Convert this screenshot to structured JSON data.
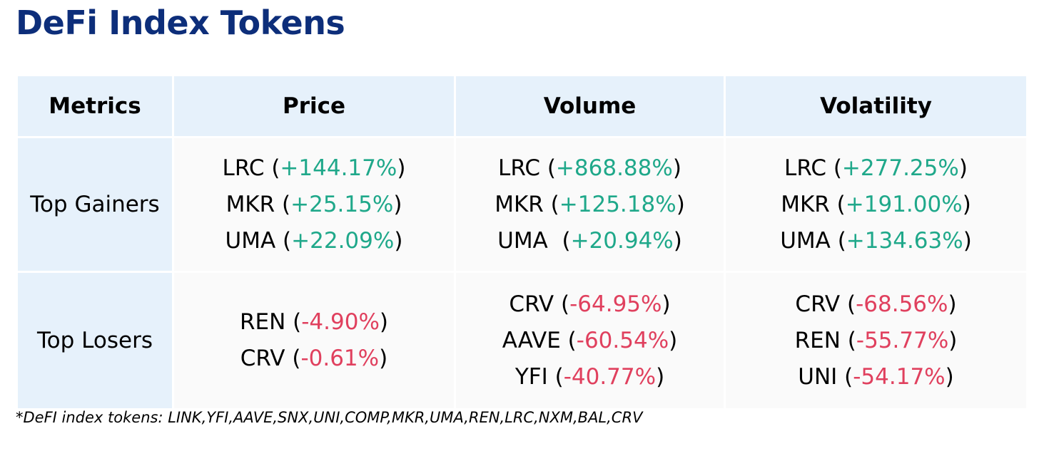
{
  "title": "DeFi Index Tokens",
  "colors": {
    "title": "#0d2e7a",
    "header_bg": "#e6f1fb",
    "cell_bg": "#fafafa",
    "positive": "#1fa88a",
    "negative": "#e0405e"
  },
  "table": {
    "headers": [
      "Metrics",
      "Price",
      "Volume",
      "Volatility"
    ],
    "rows": [
      {
        "label": "Top Gainers",
        "cells": [
          [
            {
              "symbol": "LRC",
              "change": "+144.17%"
            },
            {
              "symbol": "MKR",
              "change": "+25.15%"
            },
            {
              "symbol": "UMA",
              "change": "+22.09%"
            }
          ],
          [
            {
              "symbol": "LRC",
              "change": "+868.88%"
            },
            {
              "symbol": "MKR",
              "change": "+125.18%"
            },
            {
              "symbol": "UMA ",
              "change": "+20.94%"
            }
          ],
          [
            {
              "symbol": "LRC",
              "change": "+277.25%"
            },
            {
              "symbol": "MKR",
              "change": "+191.00%"
            },
            {
              "symbol": "UMA",
              "change": "+134.63%"
            }
          ]
        ]
      },
      {
        "label": "Top Losers",
        "cells": [
          [
            {
              "symbol": "REN",
              "change": "-4.90%"
            },
            {
              "symbol": "CRV",
              "change": "-0.61%"
            }
          ],
          [
            {
              "symbol": "CRV",
              "change": "-64.95%"
            },
            {
              "symbol": "AAVE",
              "change": "-60.54%"
            },
            {
              "symbol": "YFI",
              "change": "-40.77%"
            }
          ],
          [
            {
              "symbol": "CRV",
              "change": "-68.56%"
            },
            {
              "symbol": "REN",
              "change": "-55.77%"
            },
            {
              "symbol": "UNI",
              "change": "-54.17%"
            }
          ]
        ]
      }
    ]
  },
  "footnote": "*DeFI index tokens: LINK,YFI,AAVE,SNX,UNI,COMP,MKR,UMA,REN,LRC,NXM,BAL,CRV"
}
